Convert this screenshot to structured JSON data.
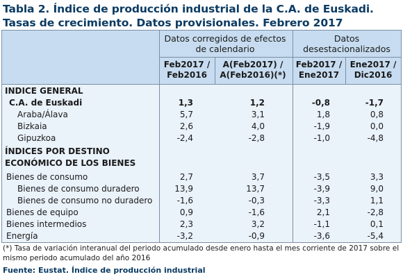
{
  "title": "Tabla 2. Índice de producción industrial de la C.A. de Euskadi. Tasas de crecimiento. Datos provisionales. Febrero 2017",
  "header": {
    "group1": "Datos corregidos de efectos de calendario",
    "group2": "Datos desestacionalizados",
    "col1": "Feb2017 / Feb2016",
    "col2": "A(Feb2017) / A(Feb2016)(*)",
    "col3": "Feb2017 / Ene2017",
    "col4": "Ene2017 / Dic2016"
  },
  "section1": "INDICE GENERAL",
  "rows1": [
    {
      "label": "C.A. de Euskadi",
      "v": [
        "1,3",
        "1,2",
        "-0,8",
        "-1,7"
      ],
      "bold": true
    },
    {
      "label": "Araba/Álava",
      "v": [
        "5,7",
        "3,1",
        "1,8",
        "0,8"
      ]
    },
    {
      "label": "Bizkaia",
      "v": [
        "2,6",
        "4,0",
        "-1,9",
        "0,0"
      ]
    },
    {
      "label": "Gipuzkoa",
      "v": [
        "-2,4",
        "-2,8",
        "-1,0",
        "-4,8"
      ]
    }
  ],
  "section2_line1": "ÍNDICES POR DESTINO",
  "section2_line2": "ECONÓMICO DE LOS BIENES",
  "rows2": [
    {
      "label": "Bienes de consumo",
      "v": [
        "2,7",
        "3,7",
        "-3,5",
        "3,3"
      ]
    },
    {
      "label": "Bienes de consumo duradero",
      "v": [
        "13,9",
        "13,7",
        "-3,9",
        "9,0"
      ]
    },
    {
      "label": "Bienes de consumo no duradero",
      "v": [
        "-1,6",
        "-0,3",
        "-3,3",
        "1,1"
      ]
    },
    {
      "label": "Bienes de equipo",
      "v": [
        "0,9",
        "-1,6",
        "2,1",
        "-2,8"
      ]
    },
    {
      "label": "Bienes intermedios",
      "v": [
        "2,3",
        "3,2",
        "-1,1",
        "0,1"
      ]
    },
    {
      "label": "Energía",
      "v": [
        "-3,2",
        "-0,9",
        "-3,6",
        "-5,4"
      ]
    }
  ],
  "footnote": "(*) Tasa de variación interanual del periodo acumulado desde enero hasta el mes corriente de 2017 sobre el mismo periodo acumulado del año 2016",
  "source": "Fuente: Eustat. Índice de producción industrial"
}
